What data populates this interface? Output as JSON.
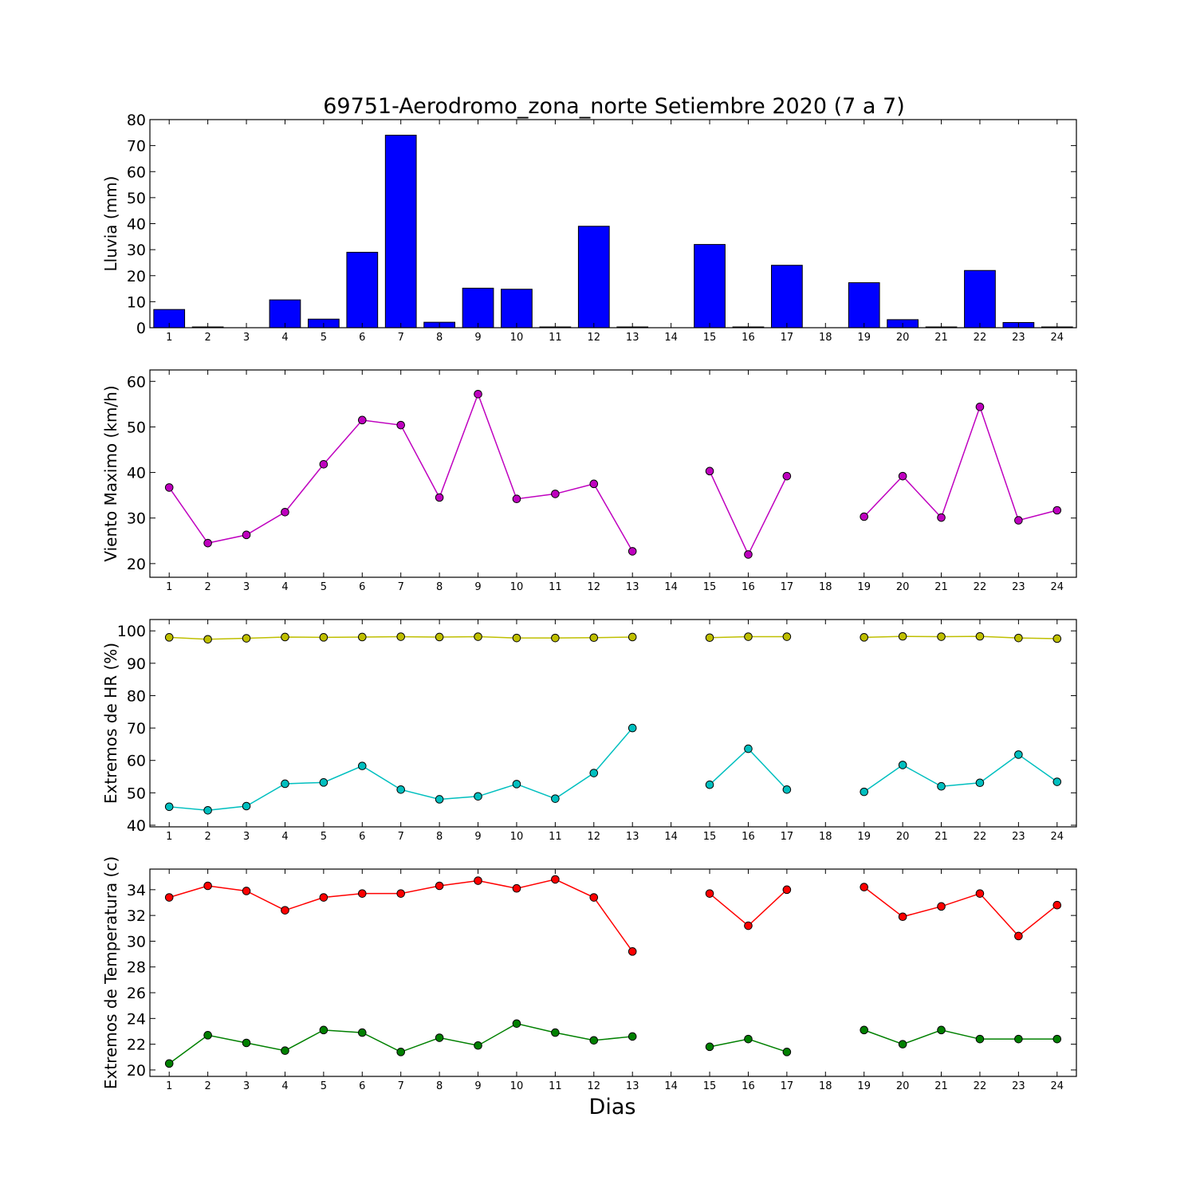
{
  "title": "69751-Aerodromo_zona_norte Setiembre 2020  (7 a 7)",
  "xlabel": "Dias",
  "x_categories": [
    "1",
    "2",
    "3",
    "4",
    "5",
    "6",
    "7",
    "8",
    "9",
    "10",
    "11",
    "12",
    "13",
    "14",
    "15",
    "16",
    "17",
    "18",
    "19",
    "20",
    "21",
    "22",
    "23",
    "24"
  ],
  "chart_data": [
    {
      "type": "bar",
      "ylabel": "Lluvia (mm)",
      "ylim": [
        0,
        80
      ],
      "yticks": [
        0,
        10,
        20,
        30,
        40,
        50,
        60,
        70,
        80
      ],
      "grid": false,
      "series": [
        {
          "color": "#0000ff",
          "values": [
            7,
            0.3,
            0,
            10.7,
            3.3,
            29,
            74,
            2.1,
            15.2,
            14.8,
            0.3,
            39,
            0.3,
            0,
            32,
            0.3,
            24,
            0,
            17.3,
            3.1,
            0.3,
            22,
            2,
            0.3
          ]
        }
      ]
    },
    {
      "type": "line",
      "ylabel": "Viento Maximo (km/h)",
      "ylim": [
        17,
        62.5
      ],
      "yticks": [
        20,
        30,
        40,
        50,
        60
      ],
      "grid": false,
      "series": [
        {
          "color": "#bf00bf",
          "values": [
            36.7,
            24.5,
            26.3,
            31.3,
            41.8,
            51.5,
            50.4,
            34.5,
            57.2,
            34.2,
            35.3,
            37.5,
            22.7,
            null,
            40.3,
            22,
            39.2,
            null,
            30.3,
            39.2,
            30.1,
            54.4,
            29.5,
            31.7
          ]
        }
      ]
    },
    {
      "type": "line",
      "ylabel": "Extremos de HR (%)",
      "ylim": [
        39.5,
        103.5
      ],
      "yticks": [
        40,
        50,
        60,
        70,
        80,
        90,
        100
      ],
      "grid": false,
      "series": [
        {
          "color": "#bfbf00",
          "values": [
            98,
            97.4,
            97.7,
            98.1,
            98,
            98.1,
            98.2,
            98.1,
            98.2,
            97.8,
            97.8,
            97.9,
            98.1,
            null,
            97.9,
            98.2,
            98.2,
            null,
            98,
            98.3,
            98.2,
            98.3,
            97.8,
            97.6
          ]
        },
        {
          "color": "#00bfbf",
          "values": [
            45.7,
            44.6,
            45.9,
            52.8,
            53.2,
            58.3,
            51,
            48,
            48.9,
            52.7,
            48.2,
            56.1,
            70,
            null,
            52.5,
            63.6,
            51,
            null,
            50.3,
            58.6,
            52,
            53.1,
            61.8,
            53.4
          ]
        }
      ]
    },
    {
      "type": "line",
      "ylabel": "Extremos de Temperatura (c)",
      "ylim": [
        19.5,
        35.6
      ],
      "yticks": [
        20,
        22,
        24,
        26,
        28,
        30,
        32,
        34
      ],
      "grid": false,
      "series": [
        {
          "color": "#ff0000",
          "values": [
            33.4,
            34.3,
            33.9,
            32.4,
            33.4,
            33.7,
            33.7,
            34.3,
            34.7,
            34.1,
            34.8,
            33.4,
            29.2,
            null,
            33.7,
            31.2,
            34,
            null,
            34.2,
            31.9,
            32.7,
            33.7,
            30.4,
            32.8
          ]
        },
        {
          "color": "#008000",
          "values": [
            20.5,
            22.7,
            22.1,
            21.5,
            23.1,
            22.9,
            21.4,
            22.5,
            21.9,
            23.6,
            22.9,
            22.3,
            22.6,
            null,
            21.8,
            22.4,
            21.4,
            null,
            23.1,
            22,
            23.1,
            22.4,
            22.4,
            22.4
          ]
        }
      ]
    }
  ]
}
